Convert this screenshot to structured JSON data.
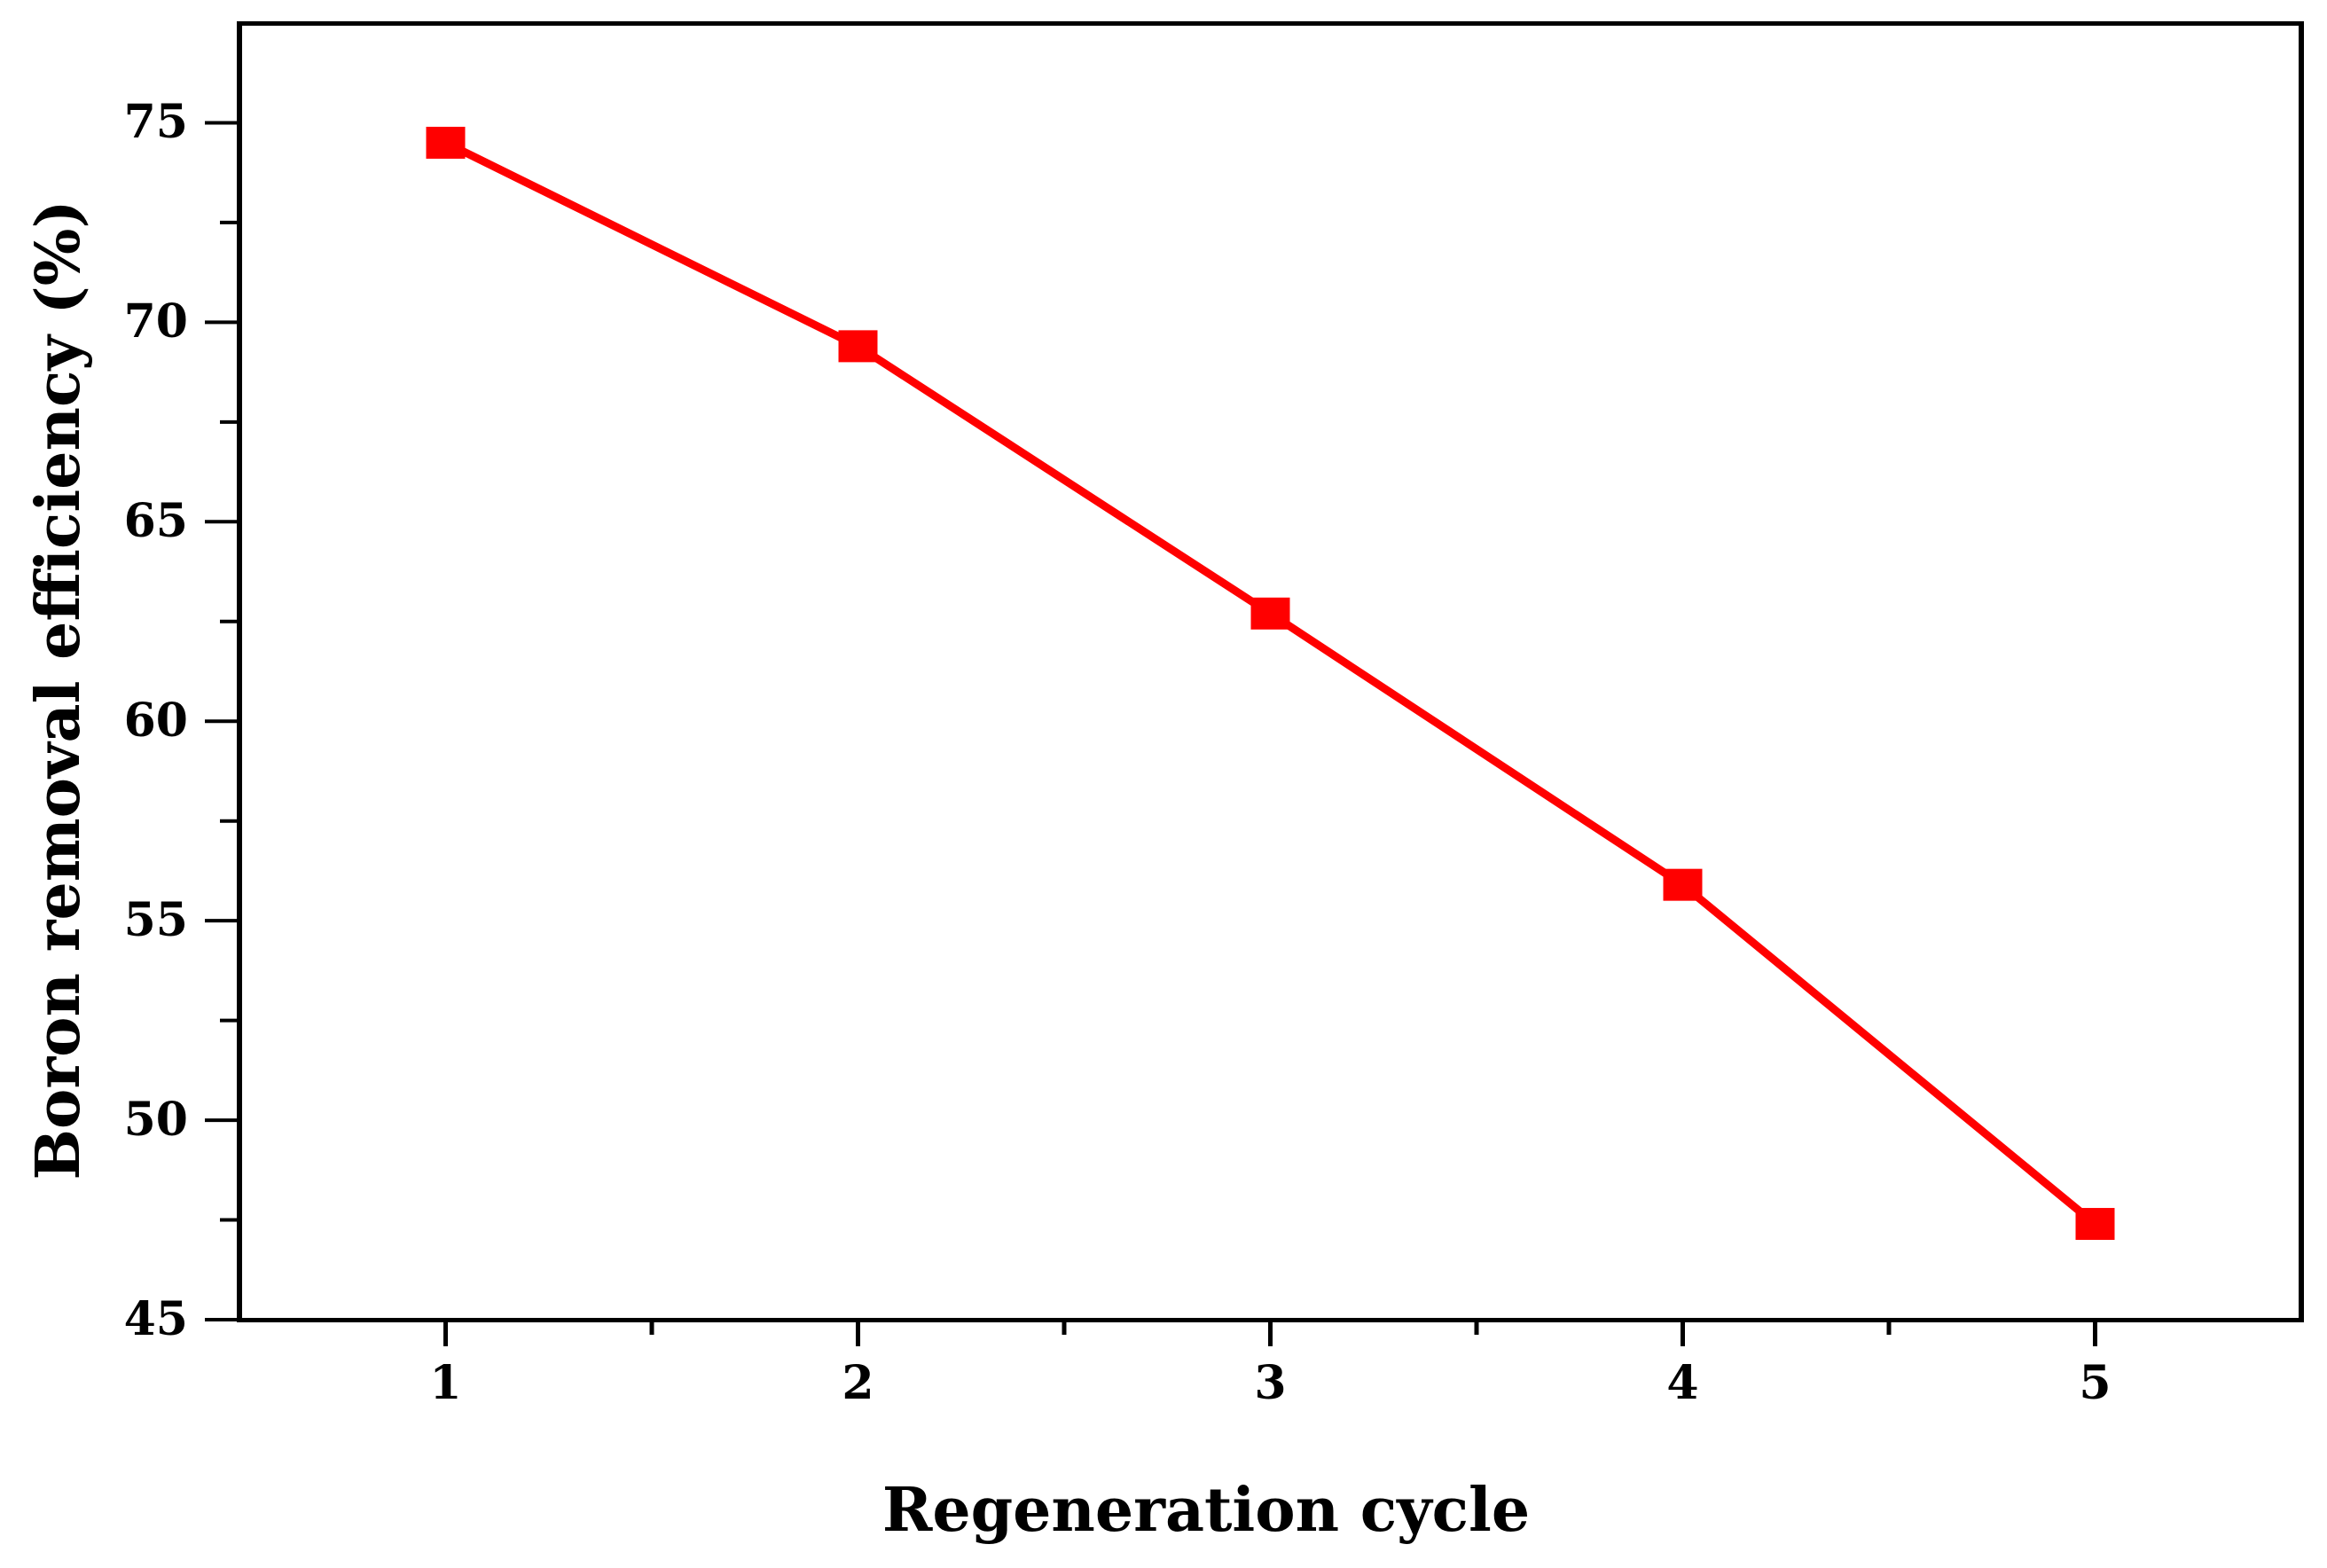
{
  "chart_data": {
    "type": "line",
    "x": [
      1,
      2,
      3,
      4,
      5
    ],
    "y": [
      74.5,
      69.4,
      62.7,
      55.9,
      47.4
    ],
    "series_label": "Boron removal efficiency",
    "title": "",
    "xlabel": "Regeneration cycle",
    "ylabel": "Boron removal efficiency (%)",
    "xlim": [
      0.5,
      5.5
    ],
    "ylim": [
      45,
      77.5
    ],
    "x_ticks_major": [
      1,
      2,
      3,
      4,
      5
    ],
    "x_ticks_minor": [
      1.5,
      2.5,
      3.5,
      4.5
    ],
    "y_ticks_major": [
      45,
      50,
      55,
      60,
      65,
      70,
      75
    ],
    "y_ticks_minor": [
      47.5,
      52.5,
      57.5,
      62.5,
      67.5,
      72.5
    ],
    "grid": false,
    "frame": true,
    "legend": false,
    "marker": "square",
    "line_color": "#ff0000",
    "marker_color": "#ff0000",
    "axis_color": "#000000",
    "text_color": "#000000",
    "background_color": "#ffffff"
  }
}
